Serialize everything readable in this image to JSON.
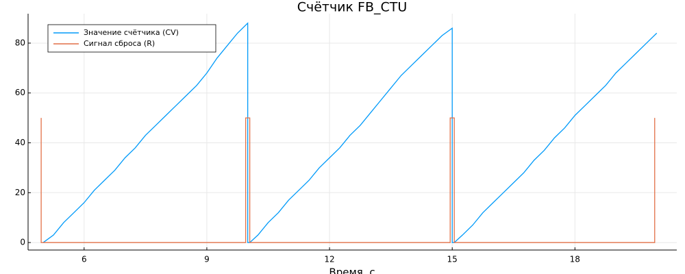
{
  "chart_data": {
    "type": "line",
    "title": "Счётчик FB_CTU",
    "x_label": "Время, с",
    "xlim": [
      4.63,
      20.49
    ],
    "ylim": [
      -3.0,
      91.8
    ],
    "xticks": [
      6,
      9,
      12,
      15,
      18
    ],
    "yticks": [
      0,
      20,
      40,
      60,
      80
    ],
    "grid": true,
    "legend": "top-left",
    "series": [
      {
        "name": "Значение счётчика (CV)",
        "color": "#009af9",
        "x": [
          5.0,
          5.25,
          5.5,
          5.75,
          6.0,
          6.25,
          6.5,
          6.75,
          7.0,
          7.25,
          7.5,
          7.75,
          8.0,
          8.25,
          8.5,
          8.75,
          9.0,
          9.25,
          9.5,
          9.75,
          10.0,
          10.0,
          10.05,
          10.25,
          10.5,
          10.75,
          11.0,
          11.25,
          11.5,
          11.75,
          12.0,
          12.25,
          12.5,
          12.75,
          13.0,
          13.25,
          13.5,
          13.75,
          14.0,
          14.25,
          14.5,
          14.75,
          15.0,
          15.0,
          15.05,
          15.25,
          15.5,
          15.75,
          16.0,
          16.25,
          16.5,
          16.75,
          17.0,
          17.25,
          17.5,
          17.75,
          18.0,
          18.25,
          18.5,
          18.75,
          19.0,
          19.25,
          19.5,
          19.75,
          20.0
        ],
        "values": [
          0,
          3,
          8,
          12,
          16,
          21,
          25,
          29,
          34,
          38,
          43,
          47,
          51,
          55,
          59,
          63,
          68,
          74,
          79,
          84,
          88,
          0,
          0,
          3,
          8,
          12,
          17,
          21,
          25,
          30,
          34,
          38,
          43,
          47,
          52,
          57,
          62,
          67,
          71,
          75,
          79,
          83,
          86,
          0,
          0,
          3,
          7,
          12,
          16,
          20,
          24,
          28,
          33,
          37,
          42,
          46,
          51,
          55,
          59,
          63,
          68,
          72,
          76,
          80,
          84
        ]
      },
      {
        "name": "Сигнал сброса (R)",
        "color": "#e26f46",
        "x": [
          4.95,
          4.95,
          4.95,
          9.95,
          9.95,
          10.05,
          10.05,
          14.95,
          14.95,
          15.05,
          15.05,
          19.95,
          19.95
        ],
        "values": [
          0,
          50,
          0,
          0,
          50,
          50,
          0,
          0,
          50,
          50,
          0,
          0,
          50
        ]
      }
    ]
  }
}
